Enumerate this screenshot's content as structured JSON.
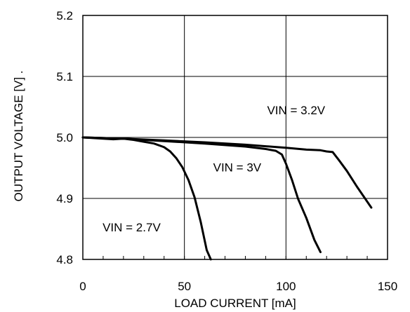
{
  "chart_data": {
    "type": "line",
    "title": "",
    "xlabel": "LOAD CURRENT [mA]",
    "ylabel": "OUTPUT VOLTAGE [V] .",
    "xlim": [
      0,
      150
    ],
    "ylim": [
      4.8,
      5.2
    ],
    "xticks": [
      0,
      50,
      100,
      150
    ],
    "yticks": [
      4.8,
      4.9,
      5.0,
      5.1,
      5.2
    ],
    "xtick_labels": [
      "0",
      "50",
      "100",
      "150"
    ],
    "ytick_labels": [
      "4.8",
      "4.9",
      "5.0",
      "5.1",
      "5.2"
    ],
    "grid": true,
    "line_color": "#000000",
    "annotations": [
      {
        "text": "VIN = 3.2V",
        "x": 105,
        "y": 5.038
      },
      {
        "text": "VIN = 3V",
        "x": 76,
        "y": 4.944
      },
      {
        "text": "VIN = 2.7V",
        "x": 24,
        "y": 4.846
      }
    ],
    "series": [
      {
        "x": [
          0,
          5,
          10,
          15,
          20,
          25,
          30,
          35,
          40,
          43,
          46,
          49,
          52,
          55,
          58,
          61,
          63
        ],
        "y": [
          5.0,
          4.999,
          4.998,
          4.997,
          4.998,
          4.996,
          4.993,
          4.99,
          4.984,
          4.977,
          4.966,
          4.951,
          4.93,
          4.902,
          4.862,
          4.815,
          4.8
        ]
      },
      {
        "x": [
          0,
          20,
          40,
          60,
          80,
          90,
          95,
          98,
          100,
          103,
          106,
          110,
          114,
          117
        ],
        "y": [
          5.0,
          4.998,
          4.994,
          4.99,
          4.985,
          4.981,
          4.978,
          4.972,
          4.957,
          4.93,
          4.899,
          4.868,
          4.832,
          4.812
        ]
      },
      {
        "x": [
          0,
          20,
          40,
          60,
          80,
          100,
          110,
          117,
          120,
          123,
          126,
          130,
          135,
          142
        ],
        "y": [
          5.0,
          4.998,
          4.995,
          4.992,
          4.988,
          4.983,
          4.98,
          4.979,
          4.977,
          4.976,
          4.963,
          4.945,
          4.919,
          4.885
        ]
      }
    ]
  }
}
